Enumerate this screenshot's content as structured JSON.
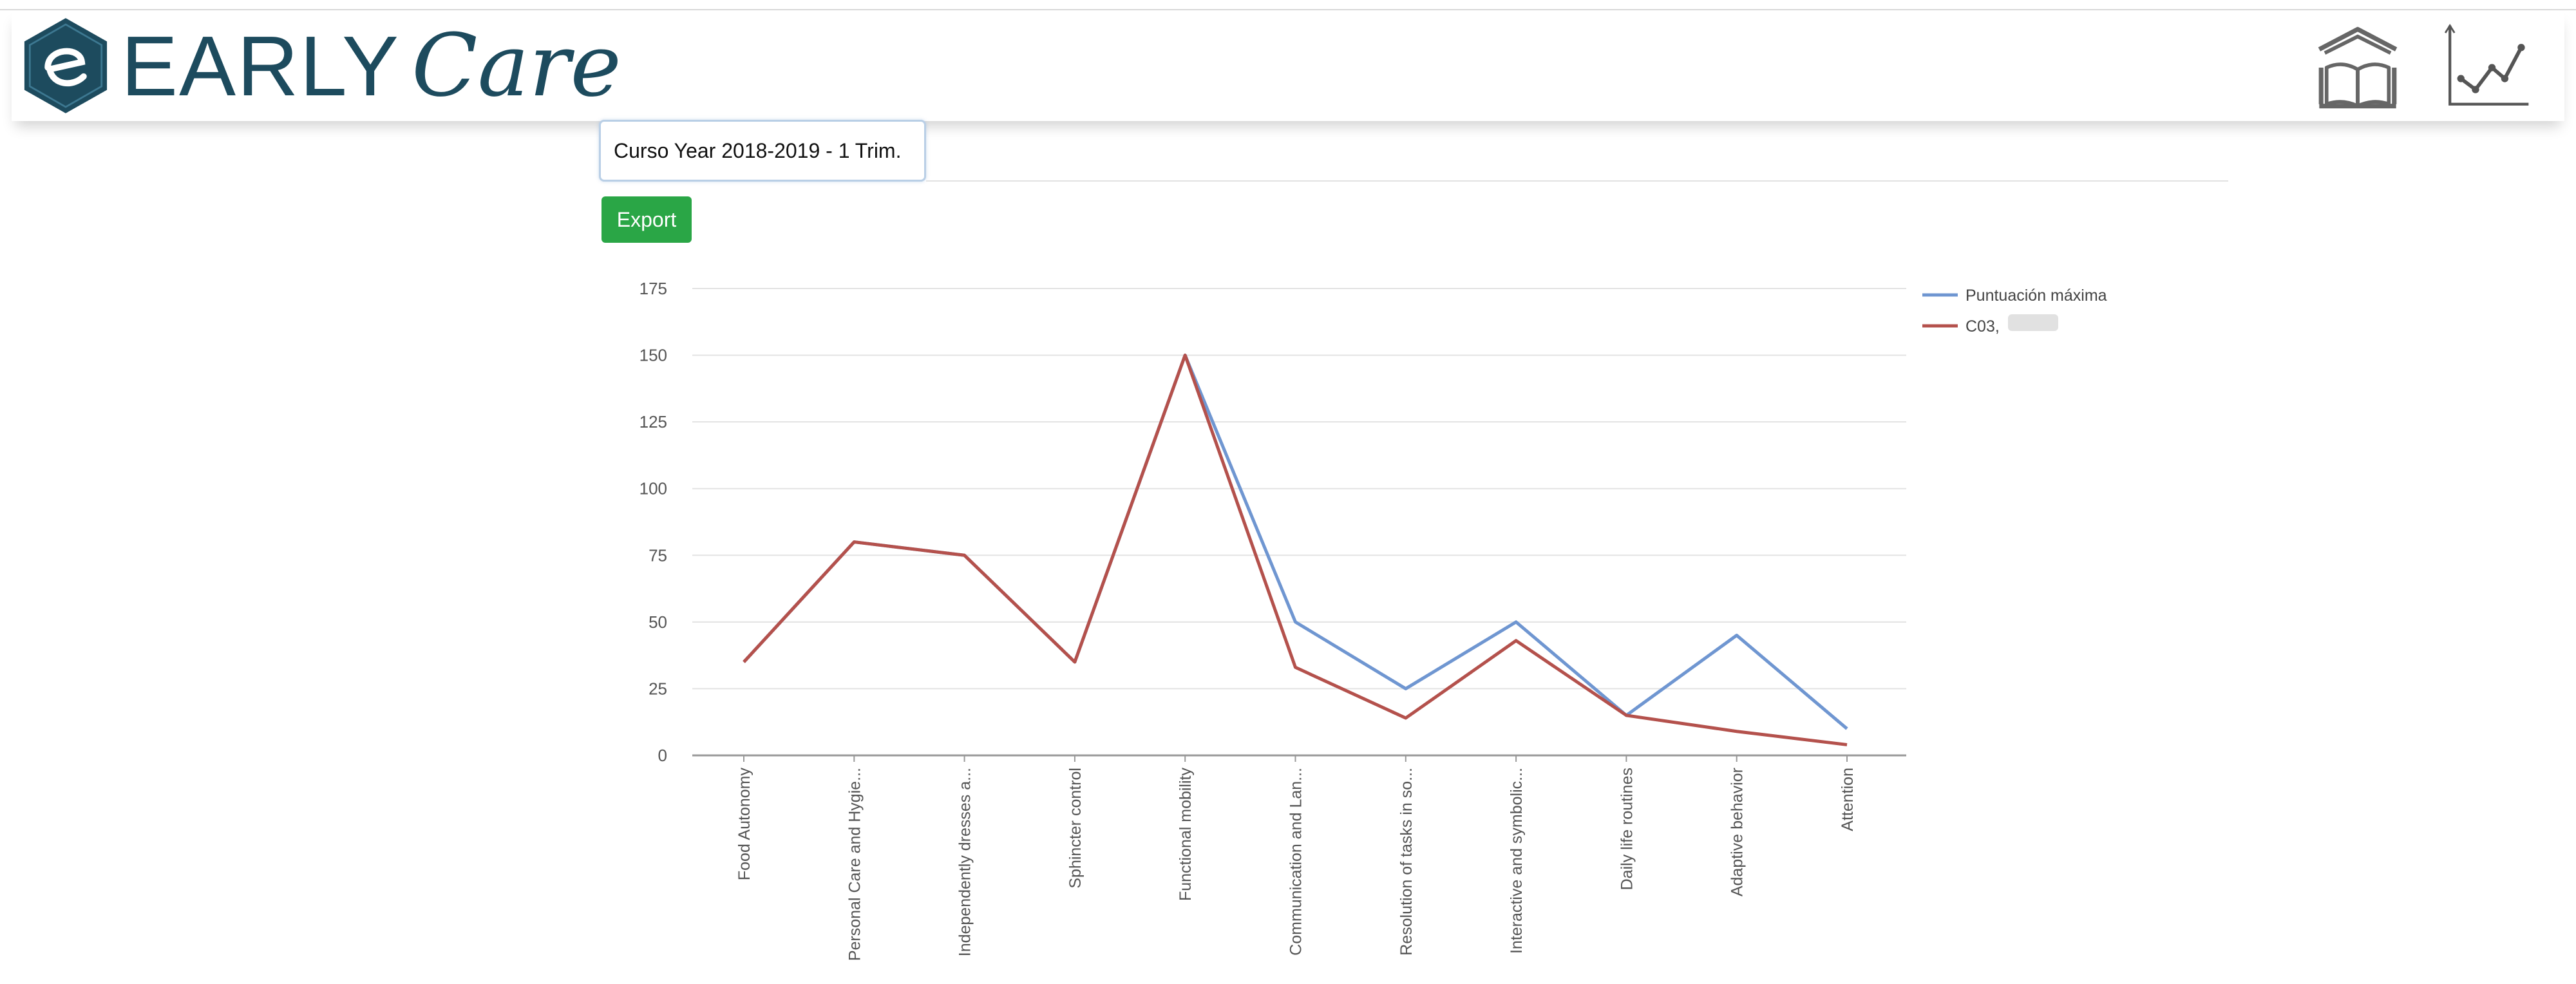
{
  "app": {
    "brand_prefix": "EARLY",
    "brand_suffix": "Care"
  },
  "header": {
    "icons": [
      "home-library-icon",
      "line-chart-icon"
    ]
  },
  "filters": {
    "period": "Curso Year 2018-2019 - 1 Trim."
  },
  "toolbar": {
    "export_label": "Export"
  },
  "colors": {
    "brand": "#1d4b5e",
    "export": "#2aa646",
    "series_max": "#6f96d1",
    "series_child": "#b4514c"
  },
  "chart_data": {
    "type": "line",
    "categories": [
      "Food Autonomy",
      "Personal Care and Hygie...",
      "Independently dresses a...",
      "Sphincter control",
      "Functional mobility",
      "Communication and Lan...",
      "Resolution of tasks in so...",
      "Interactive and symbolic...",
      "Daily life routines",
      "Adaptive behavior",
      "Attention"
    ],
    "series": [
      {
        "name": "Puntuación máxima",
        "values": [
          35,
          80,
          75,
          35,
          150,
          50,
          25,
          50,
          15,
          45,
          10
        ]
      },
      {
        "name": "C03,",
        "values": [
          35,
          80,
          75,
          35,
          150,
          33,
          14,
          43,
          15,
          9,
          4
        ]
      }
    ],
    "ylim": [
      0,
      175
    ],
    "yticks": [
      0,
      25,
      50,
      75,
      100,
      125,
      150,
      175
    ],
    "grid": true,
    "legend_position": "top-right"
  }
}
